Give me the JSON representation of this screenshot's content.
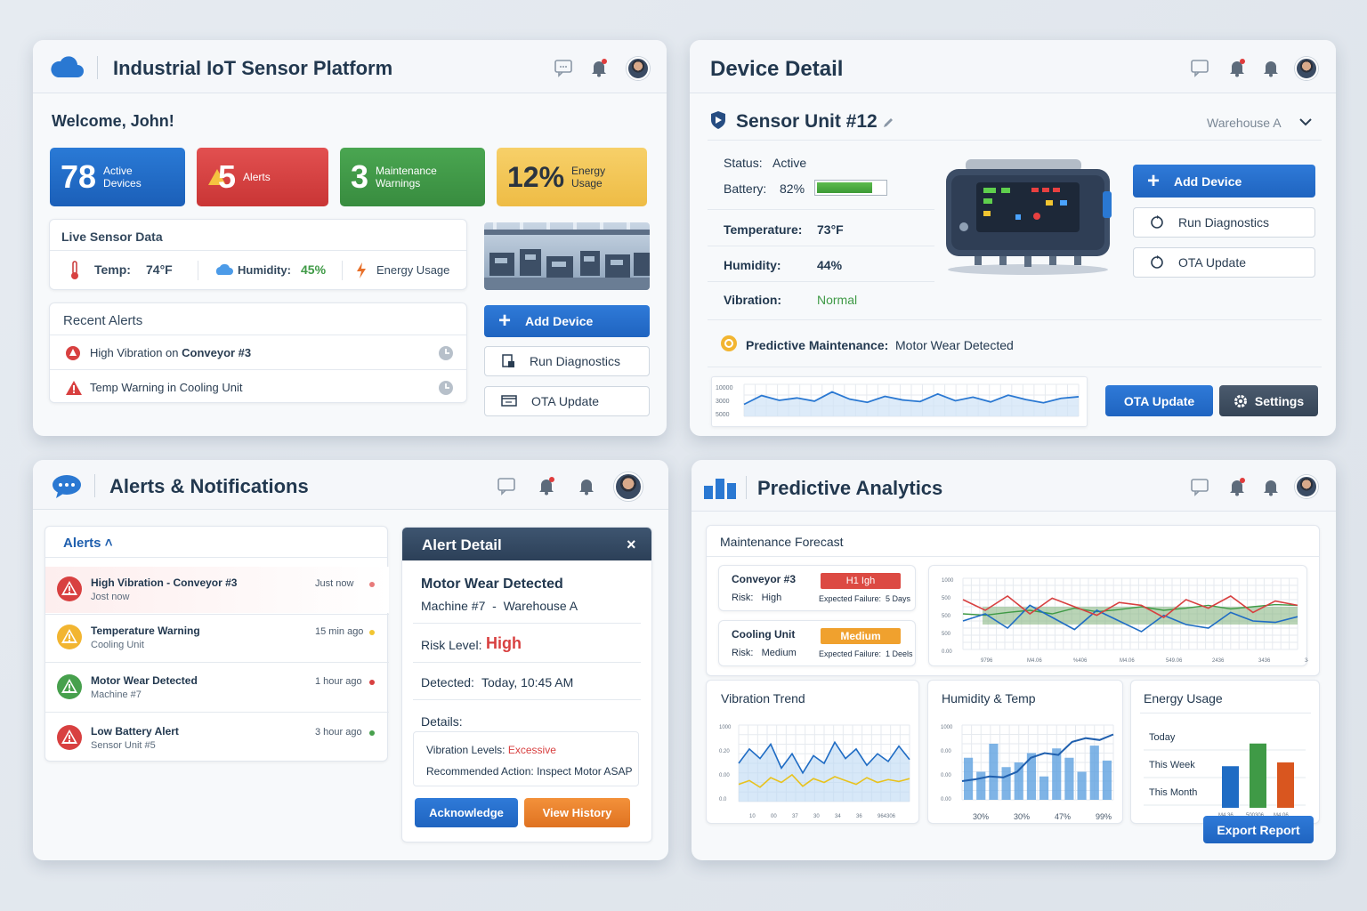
{
  "p1": {
    "title": "Industrial IoT Sensor Platform",
    "welcome": "Welcome, John!",
    "stats": [
      {
        "num": "78",
        "label": "Active\nDevices",
        "color": "#1f6cc4"
      },
      {
        "num": "5",
        "label": "Alerts",
        "color": "#d84040"
      },
      {
        "num": "3",
        "label": "Maintenance\nWarnings",
        "color": "#3f9a46"
      },
      {
        "num": "12%",
        "label": "Energy\nUsage",
        "color": "#f1c24c"
      }
    ],
    "live": {
      "title": "Live Sensor Data",
      "temp_label": "Temp:",
      "temp_value": "74°F",
      "hum_label": "Humidity:",
      "hum_value": "45%",
      "energy_label": "Energy Usage"
    },
    "recent": {
      "title": "Recent Alerts",
      "items": [
        {
          "pre": "High Vibration on ",
          "bold": "Conveyor #3"
        },
        {
          "pre": "Temp Warning in Cooling Unit",
          "bold": ""
        }
      ]
    },
    "buttons": {
      "add": "Add Device",
      "diag": "Run Diagnostics",
      "ota": "OTA Update"
    }
  },
  "p2": {
    "title": "Device Detail",
    "unit": "Sensor Unit #12",
    "location": "Warehouse A",
    "status_label": "Status:",
    "status_value": "Active",
    "battery_label": "Battery:",
    "battery_value": "82%",
    "battery_level": 0.82,
    "temp_label": "Temperature:",
    "temp_value": "73°F",
    "hum_label": "Humidity:",
    "hum_value": "44%",
    "vib_label": "Vibration:",
    "vib_value": "Normal",
    "pm_label": "Predictive Maintenance:",
    "pm_value": "Motor Wear Detected",
    "buttons": {
      "add": "Add Device",
      "diag": "Run Diagnostics",
      "ota": "OTA Update",
      "ota2": "OTA Update",
      "settings": "Settings"
    },
    "chart": {
      "yticks": [
        "10000",
        "3000",
        "5000"
      ],
      "values": [
        3000,
        5200,
        4000,
        4600,
        3800,
        6100,
        4300,
        3500,
        5000,
        4100,
        3700,
        5600,
        3900,
        4800,
        3600,
        5300,
        4200,
        3400,
        4500,
        4900
      ]
    }
  },
  "p3": {
    "title": "Alerts & Notifications",
    "tab": "Alerts",
    "alerts": [
      {
        "title": "High Vibration",
        "sub_bold": "Conveyor #3",
        "sub": "Jost now",
        "time": "Just now",
        "color": "#d84040",
        "dot": "#e87a7a"
      },
      {
        "title": "Temperature Warning",
        "sub_bold": "",
        "sub": "Cooling Unit",
        "time": "15 min ago",
        "color": "#f2b531",
        "dot": "#f2c531"
      },
      {
        "title": "Motor Wear Detected",
        "sub_bold": "",
        "sub": "Machine #7",
        "time": "1 hour ago",
        "color": "#47a04d",
        "dot": "#d84040"
      },
      {
        "title": "Low Battery Alert",
        "sub_bold": "",
        "sub": "Sensor Unit #5",
        "time": "3 hour ago",
        "color": "#d84040",
        "dot": "#47a04d"
      }
    ],
    "detail": {
      "header": "Alert Detail",
      "title": "Motor Wear Detected",
      "machine": "Machine #7  -  Warehouse A",
      "risk_label": "Risk Level:",
      "risk_value": "High",
      "detected_label": "Detected:",
      "detected_value": "Today, 10:45 AM",
      "details_label": "Details:",
      "vib_label": "Vibration Levels:",
      "vib_value": "Excessive",
      "action": "Recommended Action: Inspect Motor ASAP",
      "ack": "Acknowledge",
      "history": "View History"
    }
  },
  "p4": {
    "title": "Predictive Analytics",
    "forecast_title": "Maintenance Forecast",
    "forecast": [
      {
        "name": "Conveyor #3",
        "risk": "Risk:   High",
        "badge": "H1 Igh",
        "badge_color": "#dc4a43",
        "fail": "Expected Failure:  5 Days"
      },
      {
        "name": "Cooling Unit",
        "risk": "Risk:   Medium",
        "badge": "Medium",
        "badge_color": "#f0a12e",
        "fail": "Expected Failure:  1 Deels"
      }
    ],
    "forecast_chart": {
      "yticks": [
        "1000",
        "500",
        "500",
        "500",
        "0.00"
      ],
      "xticks": [
        "9796",
        "M4.06",
        "%406",
        "M4.06",
        "549.06",
        "2436",
        "3436",
        "3436"
      ],
      "red": [
        70,
        55,
        75,
        50,
        72,
        60,
        48,
        66,
        62,
        45,
        70,
        58,
        75,
        52,
        68,
        62
      ],
      "blue": [
        40,
        50,
        30,
        62,
        45,
        28,
        55,
        40,
        25,
        48,
        35,
        30,
        52,
        40,
        38,
        46
      ],
      "green": [
        50,
        48,
        52,
        55,
        50,
        58,
        53,
        56,
        60,
        55,
        58,
        62,
        57,
        60,
        63,
        62
      ]
    },
    "vibration": {
      "title": "Vibration Trend",
      "yticks": [
        "1000",
        "0.20",
        "0.00",
        "0.0"
      ],
      "xticks": [
        "10",
        "00",
        "37",
        "30",
        "34",
        "36",
        "964306"
      ],
      "blue": [
        40,
        55,
        45,
        60,
        35,
        50,
        30,
        48,
        40,
        62,
        45,
        55,
        38,
        50,
        42,
        58,
        44
      ],
      "yellow": [
        18,
        22,
        15,
        25,
        20,
        28,
        16,
        24,
        20,
        26,
        22,
        18,
        25,
        20,
        23,
        21,
        24
      ]
    },
    "humidity": {
      "title": "Humidity & Temp",
      "yticks": [
        "1000",
        "0.00",
        "0.00",
        "0.00"
      ],
      "xticks": [
        "30%",
        "30%",
        "47%",
        "99%"
      ],
      "bars": [
        45,
        30,
        60,
        35,
        40,
        50,
        25,
        55,
        45,
        30,
        58,
        42
      ],
      "line": [
        20,
        22,
        25,
        24,
        30,
        45,
        50,
        48,
        62,
        66,
        64,
        70
      ]
    },
    "energy": {
      "title": "Energy Usage",
      "labels": [
        "Today",
        "This Week",
        "This Month"
      ],
      "xticks": [
        "M4.36",
        "500306",
        "M4.06"
      ],
      "bars": [
        {
          "value": 55,
          "color": "#1f6cc4"
        },
        {
          "value": 85,
          "color": "#3f9a46"
        },
        {
          "value": 60,
          "color": "#d9561f"
        }
      ],
      "export": "Export Report"
    }
  },
  "colors": {
    "accent": "#1f6cc4",
    "danger": "#d84040",
    "success": "#3f9a46",
    "warning": "#f2b531"
  }
}
